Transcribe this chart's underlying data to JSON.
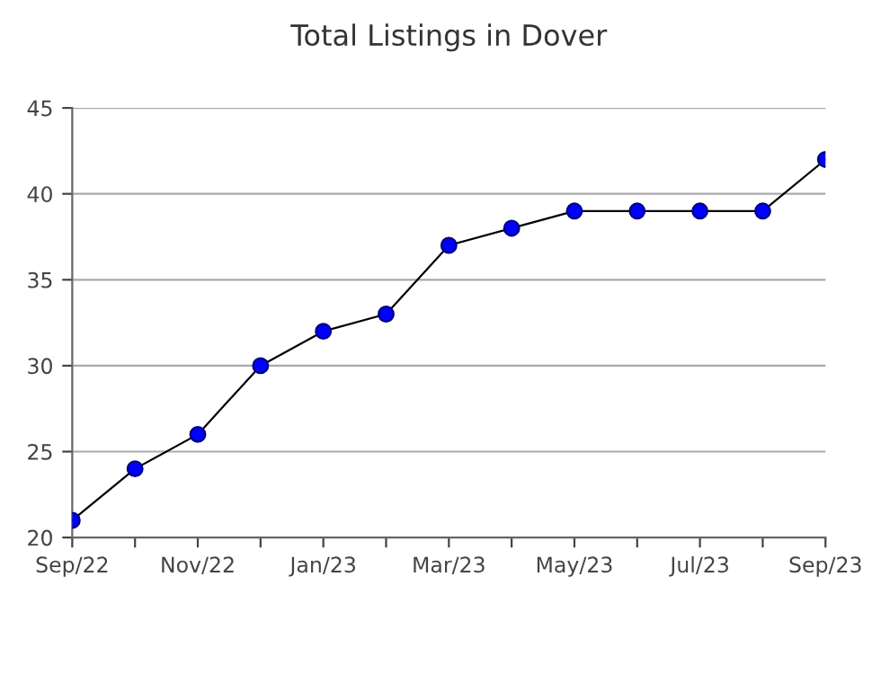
{
  "chart_data": {
    "type": "line",
    "title": "Total Listings in Dover",
    "categories": [
      "Sep/22",
      null,
      "Nov/22",
      null,
      "Jan/23",
      null,
      "Mar/23",
      null,
      "May/23",
      null,
      "Jul/23",
      null,
      "Sep/23"
    ],
    "series": [
      {
        "color": "#0000ff",
        "values": [
          21,
          24,
          26,
          30,
          32,
          33,
          37,
          38,
          39,
          39,
          39,
          39,
          42
        ]
      }
    ],
    "ylim": [
      20,
      45
    ],
    "yticks": [
      20,
      25,
      30,
      35,
      40,
      45
    ],
    "grid": "y",
    "marker": "circle",
    "line_style": "solid",
    "legend": false
  }
}
